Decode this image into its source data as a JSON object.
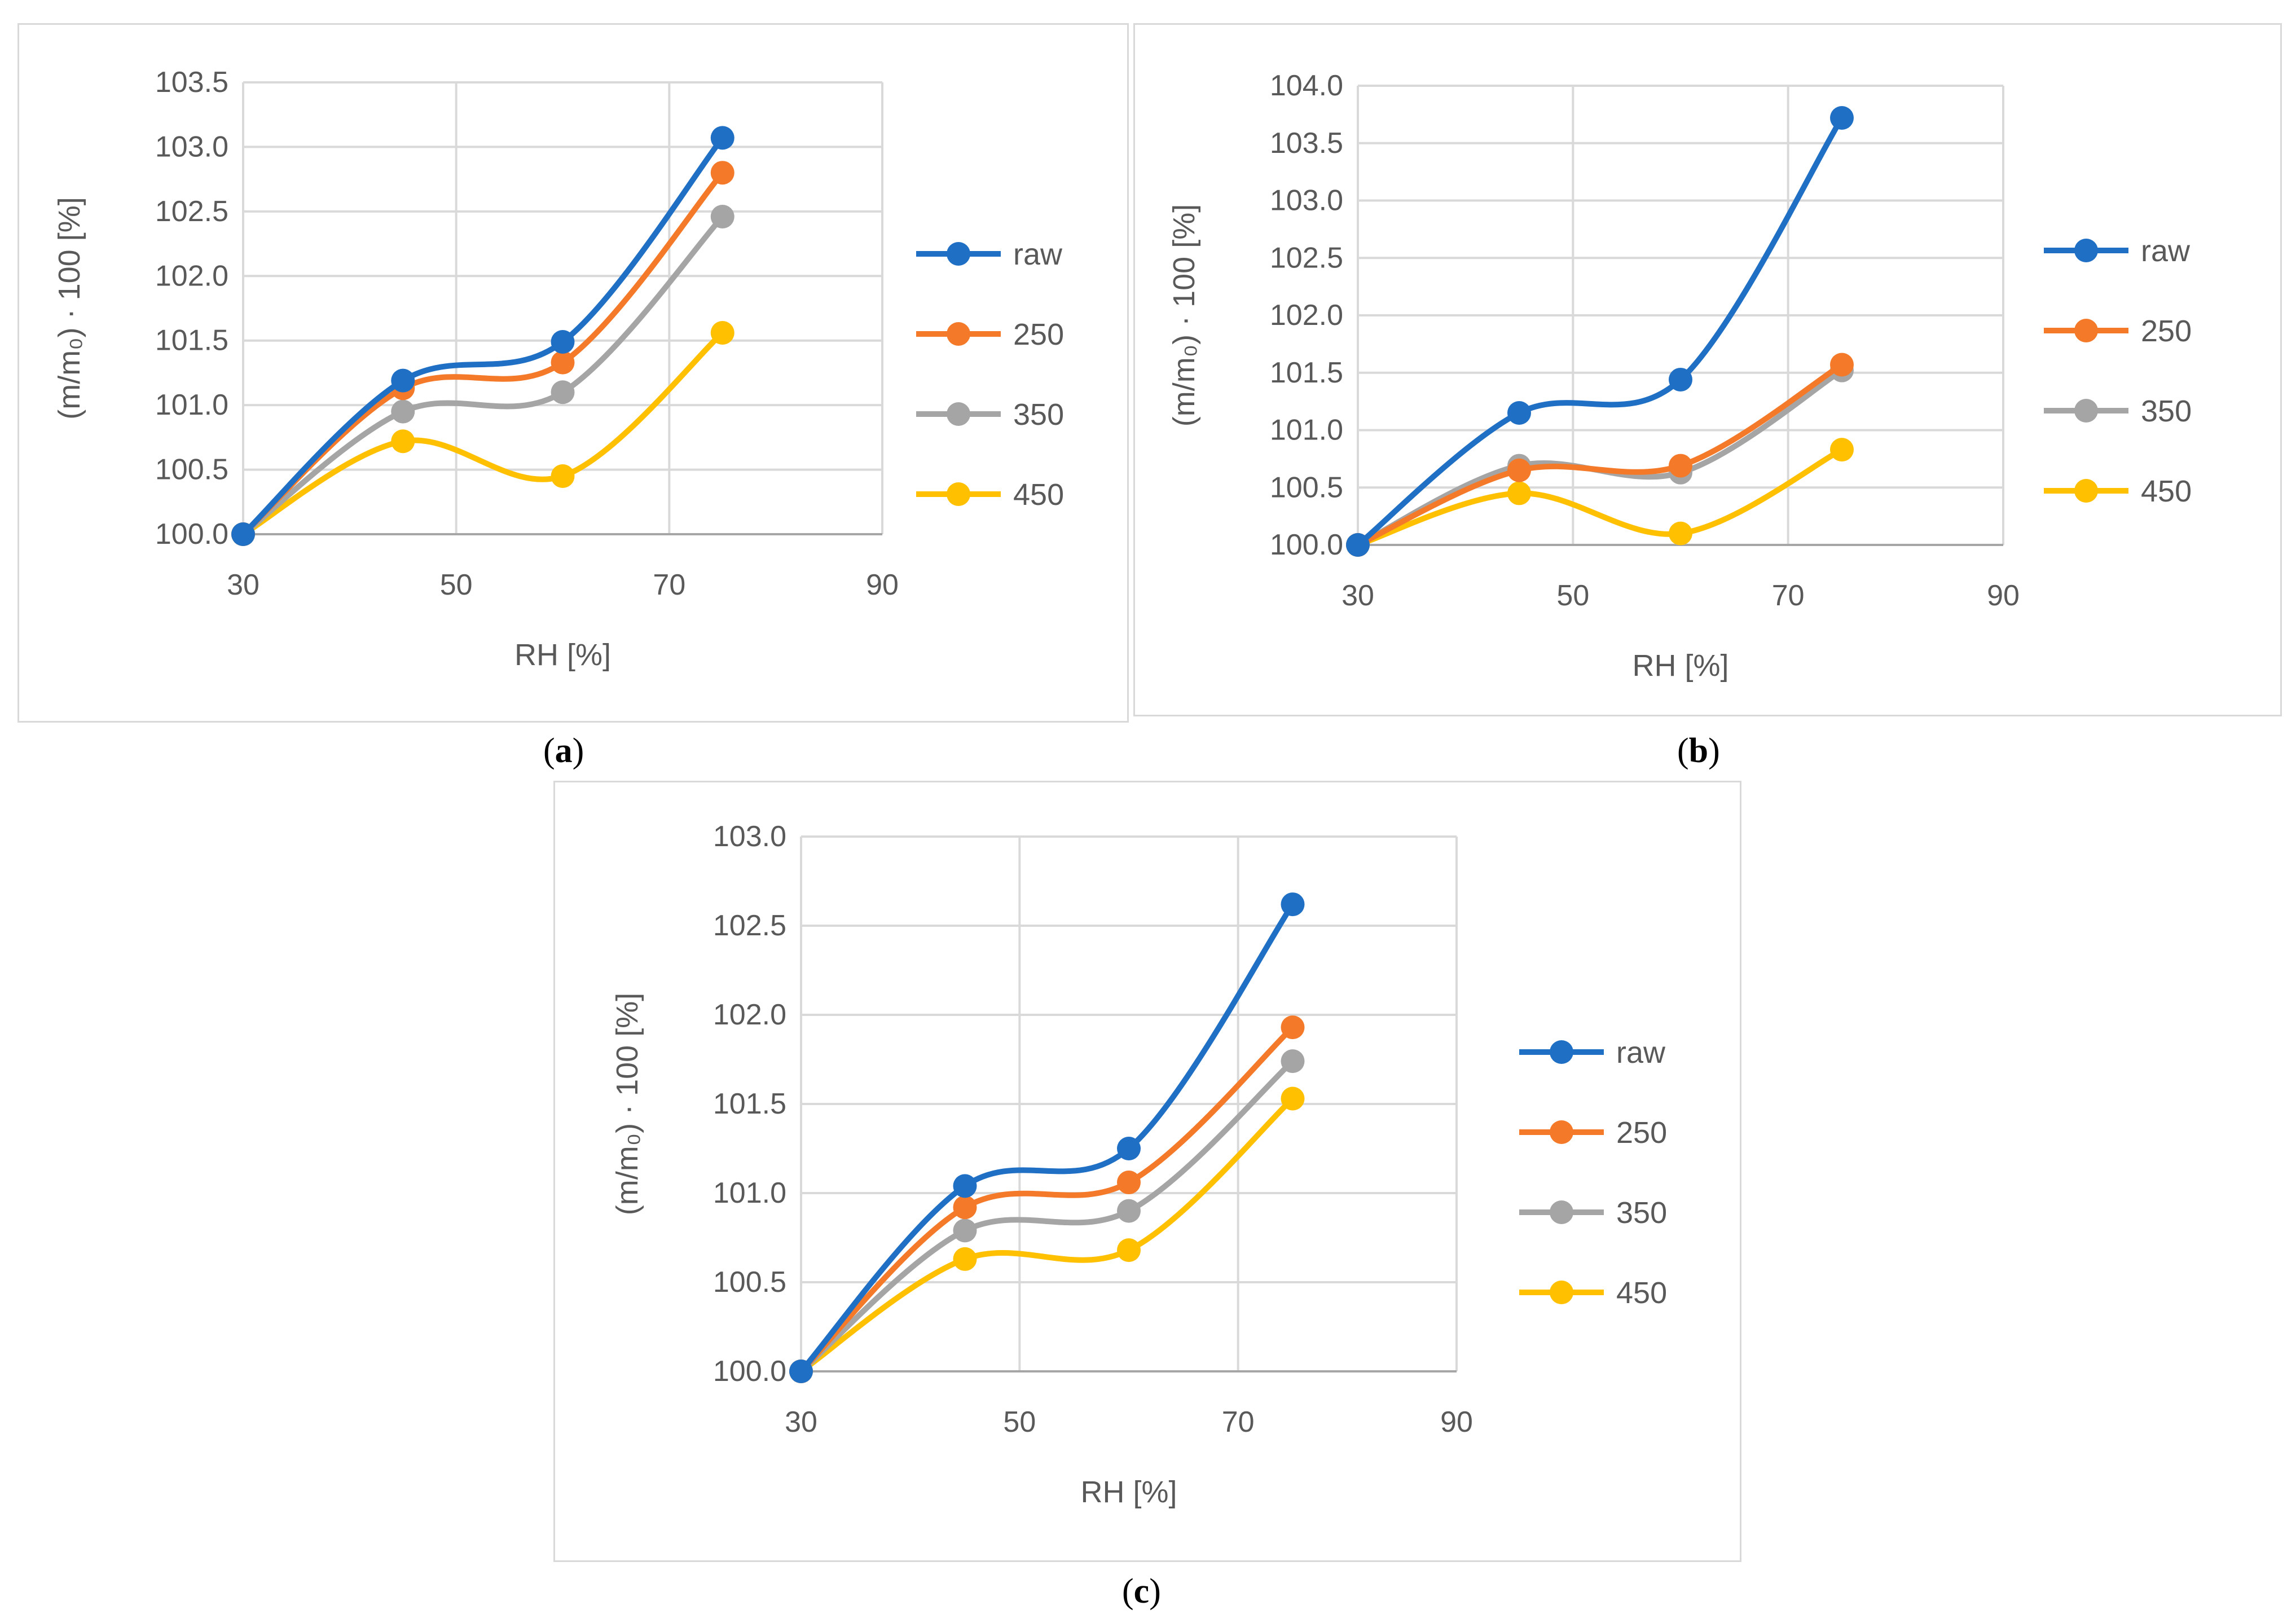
{
  "colors": {
    "raw": "#1f6fc5",
    "250": "#f47a2a",
    "350": "#a5a5a5",
    "450": "#ffc000",
    "axis": "#a6a6a6",
    "grid": "#d9d9d9",
    "text": "#595959"
  },
  "chart_data": [
    {
      "id": "a",
      "type": "line",
      "caption": "a",
      "xlabel": "RH [%]",
      "ylabel": "(m/m₀) · 100 [%]",
      "xlim": [
        30,
        90
      ],
      "xticks": [
        30,
        50,
        70,
        90
      ],
      "ylim": [
        100.0,
        103.5
      ],
      "yticks": [
        "100.0",
        "100.5",
        "101.0",
        "101.5",
        "102.0",
        "102.5",
        "103.0",
        "103.5"
      ],
      "x": [
        30,
        45,
        60,
        75
      ],
      "series": [
        {
          "name": "raw",
          "values": [
            100.0,
            101.19,
            101.49,
            103.07
          ]
        },
        {
          "name": "250",
          "values": [
            100.0,
            101.13,
            101.33,
            102.8
          ]
        },
        {
          "name": "350",
          "values": [
            100.0,
            100.95,
            101.1,
            102.46
          ]
        },
        {
          "name": "450",
          "values": [
            100.0,
            100.72,
            100.45,
            101.56
          ]
        }
      ],
      "legend": [
        "raw",
        "250",
        "350",
        "450"
      ]
    },
    {
      "id": "b",
      "type": "line",
      "caption": "b",
      "xlabel": "RH [%]",
      "ylabel": "(m/m₀) · 100 [%]",
      "xlim": [
        30,
        90
      ],
      "xticks": [
        30,
        50,
        70,
        90
      ],
      "ylim": [
        100.0,
        104.0
      ],
      "yticks": [
        "100.0",
        "100.5",
        "101.0",
        "101.5",
        "102.0",
        "102.5",
        "103.0",
        "103.5",
        "104.0"
      ],
      "x": [
        30,
        45,
        60,
        75
      ],
      "series": [
        {
          "name": "raw",
          "values": [
            100.0,
            101.15,
            101.44,
            103.72
          ]
        },
        {
          "name": "250",
          "values": [
            100.0,
            100.65,
            100.69,
            101.57
          ]
        },
        {
          "name": "350",
          "values": [
            100.0,
            100.69,
            100.63,
            101.52
          ]
        },
        {
          "name": "450",
          "values": [
            100.0,
            100.45,
            100.1,
            100.83
          ]
        }
      ],
      "legend": [
        "raw",
        "250",
        "350",
        "450"
      ]
    },
    {
      "id": "c",
      "type": "line",
      "caption": "c",
      "xlabel": "RH [%]",
      "ylabel": "(m/m₀) · 100 [%]",
      "xlim": [
        30,
        90
      ],
      "xticks": [
        30,
        50,
        70,
        90
      ],
      "ylim": [
        100.0,
        103.0
      ],
      "yticks": [
        "100.0",
        "100.5",
        "101.0",
        "101.5",
        "102.0",
        "102.5",
        "103.0"
      ],
      "x": [
        30,
        45,
        60,
        75
      ],
      "series": [
        {
          "name": "raw",
          "values": [
            100.0,
            101.04,
            101.25,
            102.62
          ]
        },
        {
          "name": "250",
          "values": [
            100.0,
            100.92,
            101.06,
            101.93
          ]
        },
        {
          "name": "350",
          "values": [
            100.0,
            100.79,
            100.9,
            101.74
          ]
        },
        {
          "name": "450",
          "values": [
            100.0,
            100.63,
            100.68,
            101.53
          ]
        }
      ],
      "legend": [
        "raw",
        "250",
        "350",
        "450"
      ]
    }
  ]
}
